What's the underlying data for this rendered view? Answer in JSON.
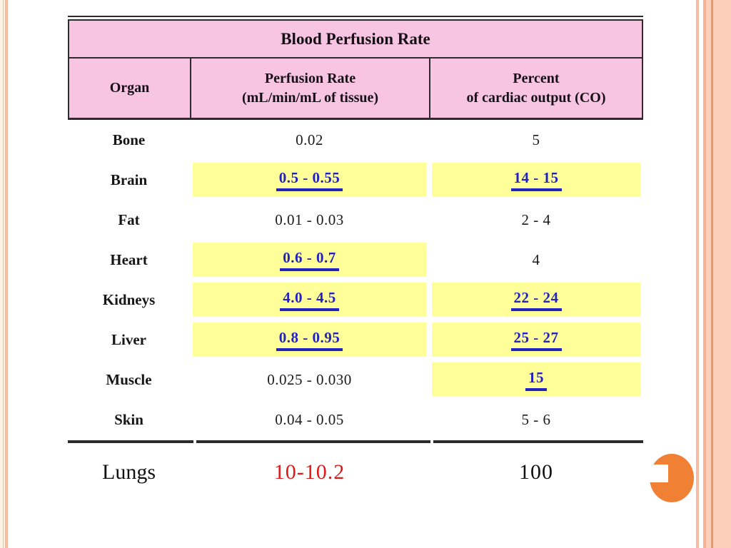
{
  "slide": {
    "decor": {
      "left_band_color": "#fbf4e6",
      "left_line_color": "#d9c6aa",
      "left_stripe_color": "#f8bca2",
      "right_stripe_color": "#f8bca2",
      "right_band_color": "#fbcfba",
      "right_line_color": "#dd9c78",
      "circle_color": "#f08034"
    }
  },
  "table": {
    "title": "Blood Perfusion Rate",
    "header_bg": "#f7c4e2",
    "highlight_bg": "#ffff99",
    "emphasis_color": "#2222c0",
    "columns": [
      {
        "lines": [
          "Organ"
        ]
      },
      {
        "lines": [
          "Perfusion Rate",
          "(mL/min/mL of tissue)"
        ]
      },
      {
        "lines": [
          "Percent",
          "of cardiac output (CO)"
        ]
      }
    ],
    "rows": [
      {
        "organ": "Bone",
        "perfusion": {
          "text": "0.02",
          "highlight": false,
          "emph": false
        },
        "percent": {
          "text": "5",
          "highlight": false,
          "emph": false
        }
      },
      {
        "organ": "Brain",
        "perfusion": {
          "text": "0.5 - 0.55",
          "highlight": true,
          "emph": true
        },
        "percent": {
          "text": "14 - 15",
          "highlight": true,
          "emph": true
        }
      },
      {
        "organ": "Fat",
        "perfusion": {
          "text": "0.01 - 0.03",
          "highlight": false,
          "emph": false
        },
        "percent": {
          "text": "2 - 4",
          "highlight": false,
          "emph": false
        }
      },
      {
        "organ": "Heart",
        "perfusion": {
          "text": "0.6 - 0.7",
          "highlight": true,
          "emph": true
        },
        "percent": {
          "text": "4",
          "highlight": false,
          "emph": false
        }
      },
      {
        "organ": "Kidneys",
        "perfusion": {
          "text": "4.0 - 4.5",
          "highlight": true,
          "emph": true
        },
        "percent": {
          "text": "22 - 24",
          "highlight": true,
          "emph": true
        }
      },
      {
        "organ": "Liver",
        "perfusion": {
          "text": "0.8 - 0.95",
          "highlight": true,
          "emph": true
        },
        "percent": {
          "text": "25 - 27",
          "highlight": true,
          "emph": true
        }
      },
      {
        "organ": "Muscle",
        "perfusion": {
          "text": "0.025 - 0.030",
          "highlight": false,
          "emph": false
        },
        "percent": {
          "text": "15",
          "highlight": true,
          "emph": true
        }
      },
      {
        "organ": "Skin",
        "perfusion": {
          "text": "0.04 - 0.05",
          "highlight": false,
          "emph": false
        },
        "percent": {
          "text": "5 - 6",
          "highlight": false,
          "emph": false
        }
      }
    ],
    "footer_row": {
      "organ": "Lungs",
      "perfusion": "10-10.2",
      "perfusion_color": "#dc1a1a",
      "percent": "100"
    }
  }
}
